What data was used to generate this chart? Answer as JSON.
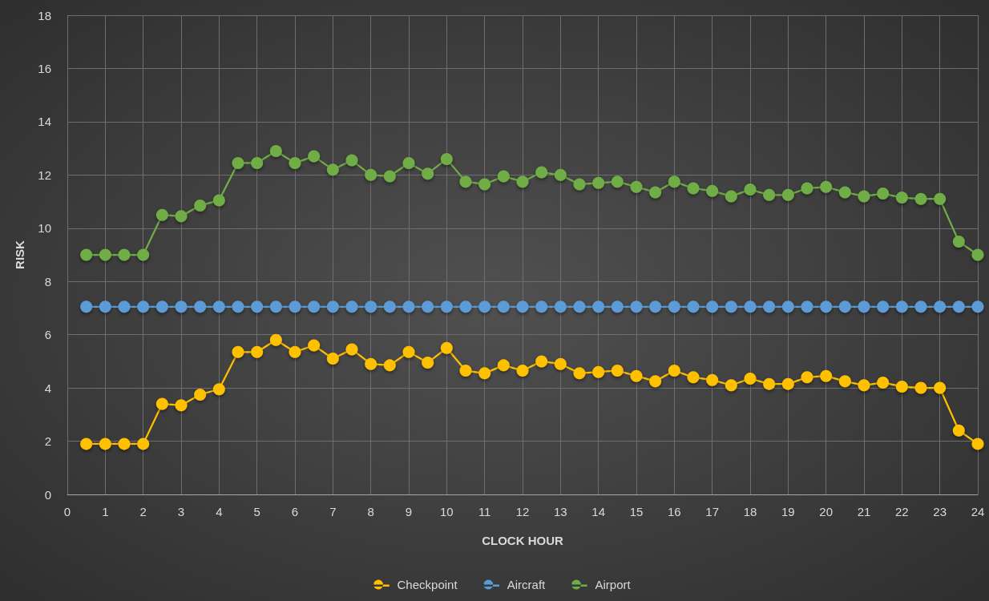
{
  "chart_data": {
    "type": "line",
    "xlabel": "CLOCK HOUR",
    "ylabel": "RISK",
    "x": [
      0.5,
      1,
      1.5,
      2,
      2.5,
      3,
      3.5,
      4,
      4.5,
      5,
      5.5,
      6,
      6.5,
      7,
      7.5,
      8,
      8.5,
      9,
      9.5,
      10,
      10.5,
      11,
      11.5,
      12,
      12.5,
      13,
      13.5,
      14,
      14.5,
      15,
      15.5,
      16,
      16.5,
      17,
      17.5,
      18,
      18.5,
      19,
      19.5,
      20,
      20.5,
      21,
      21.5,
      22,
      22.5,
      23,
      23.5,
      24
    ],
    "series": [
      {
        "name": "Checkpoint",
        "color": "#ffc000",
        "values": [
          1.9,
          1.9,
          1.9,
          1.9,
          3.4,
          3.35,
          3.75,
          3.95,
          5.35,
          5.35,
          5.8,
          5.35,
          5.6,
          5.1,
          5.45,
          4.9,
          4.85,
          5.35,
          4.95,
          5.5,
          4.65,
          4.55,
          4.85,
          4.65,
          5.0,
          4.9,
          4.55,
          4.6,
          4.65,
          4.45,
          4.25,
          4.65,
          4.4,
          4.3,
          4.1,
          4.35,
          4.15,
          4.15,
          4.4,
          4.45,
          4.25,
          4.1,
          4.2,
          4.05,
          4.0,
          4.0,
          2.4,
          1.9
        ]
      },
      {
        "name": "Aircraft",
        "color": "#5b9bd5",
        "values": [
          7.05,
          7.05,
          7.05,
          7.05,
          7.05,
          7.05,
          7.05,
          7.05,
          7.05,
          7.05,
          7.05,
          7.05,
          7.05,
          7.05,
          7.05,
          7.05,
          7.05,
          7.05,
          7.05,
          7.05,
          7.05,
          7.05,
          7.05,
          7.05,
          7.05,
          7.05,
          7.05,
          7.05,
          7.05,
          7.05,
          7.05,
          7.05,
          7.05,
          7.05,
          7.05,
          7.05,
          7.05,
          7.05,
          7.05,
          7.05,
          7.05,
          7.05,
          7.05,
          7.05,
          7.05,
          7.05,
          7.05,
          7.05
        ]
      },
      {
        "name": "Airport",
        "color": "#70ad47",
        "values": [
          9.0,
          9.0,
          9.0,
          9.0,
          10.5,
          10.45,
          10.85,
          11.05,
          12.45,
          12.45,
          12.9,
          12.45,
          12.7,
          12.2,
          12.55,
          12.0,
          11.95,
          12.45,
          12.05,
          12.6,
          11.75,
          11.65,
          11.95,
          11.75,
          12.1,
          12.0,
          11.65,
          11.7,
          11.75,
          11.55,
          11.35,
          11.75,
          11.5,
          11.4,
          11.2,
          11.45,
          11.25,
          11.25,
          11.5,
          11.55,
          11.35,
          11.2,
          11.3,
          11.15,
          11.1,
          11.1,
          9.5,
          9.0
        ]
      }
    ],
    "xlim": [
      0,
      24
    ],
    "xticks": [
      0,
      1,
      2,
      3,
      4,
      5,
      6,
      7,
      8,
      9,
      10,
      11,
      12,
      13,
      14,
      15,
      16,
      17,
      18,
      19,
      20,
      21,
      22,
      23,
      24
    ],
    "ylim": [
      0,
      18
    ],
    "yticks": [
      0,
      2,
      4,
      6,
      8,
      10,
      12,
      14,
      16,
      18
    ],
    "grid": true,
    "legend": "bottom",
    "marker": "circle",
    "line_style": "solid"
  }
}
